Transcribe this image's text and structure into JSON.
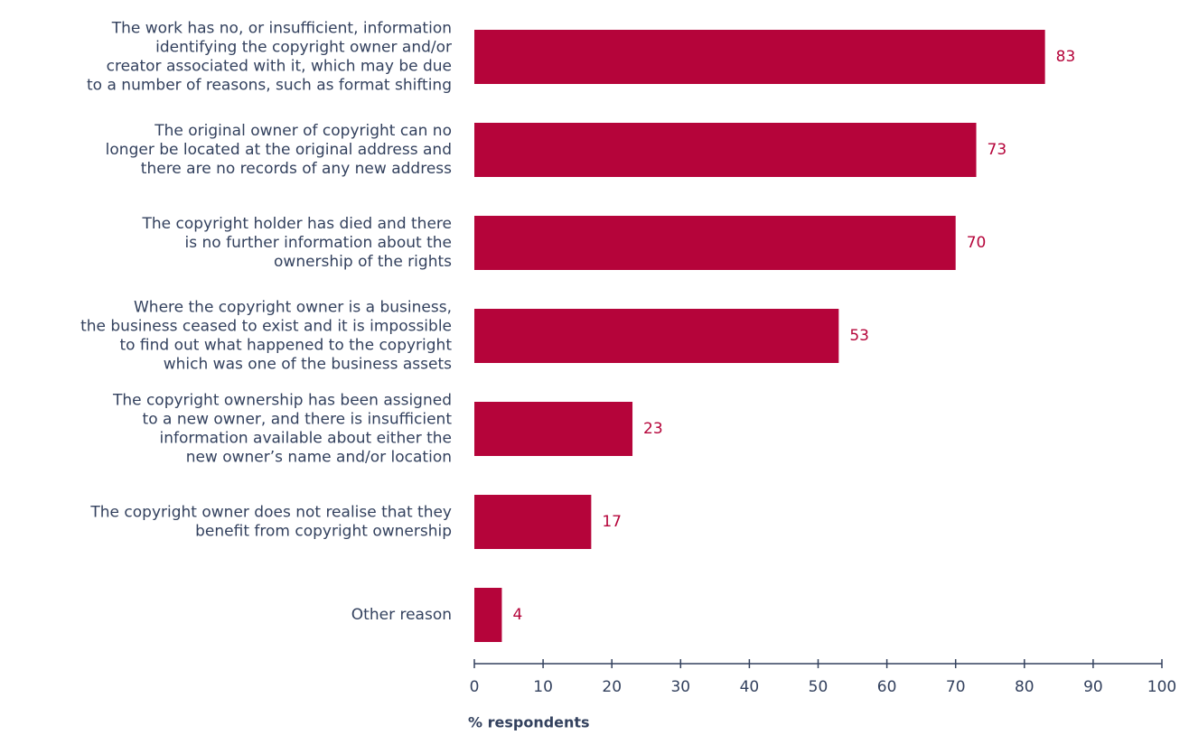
{
  "chart_data": {
    "type": "bar",
    "orientation": "horizontal",
    "categories": [
      "The work has no, or insufficient, information\nidentifying the copyright owner and/or\ncreator associated with it, which may be due\nto a number of reasons, such as format shifting",
      "The original owner of copyright can no\nlonger be located at the original address and\nthere are no records of any new address",
      "The copyright holder has died and there\nis no further information about the\nownership of the rights",
      "Where the copyright owner is a business,\nthe business ceased to exist and it is impossible\nto find out what happened to the copyright\nwhich was one of the business assets",
      "The copyright ownership has been assigned\nto a new owner, and there is insufficient\ninformation available about either the\nnew owner’s name and/or location",
      "The copyright owner does not realise that they\nbenefit from copyright ownership",
      "Other reason"
    ],
    "values": [
      83,
      73,
      70,
      53,
      23,
      17,
      4
    ],
    "color": "#b5043a",
    "xlabel": "% respondents",
    "xlim": [
      0,
      100
    ],
    "xticks": [
      0,
      10,
      20,
      30,
      40,
      50,
      60,
      70,
      80,
      90,
      100
    ]
  }
}
